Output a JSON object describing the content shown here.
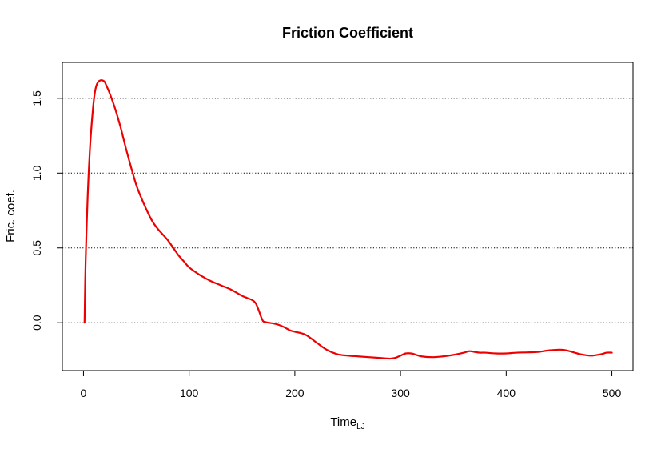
{
  "chart_data": {
    "type": "line",
    "title": "Friction Coefficient",
    "xlabel": "Time",
    "xlabel_subscript": "LJ",
    "ylabel": "Fric. coef.",
    "xlim": [
      -20,
      520
    ],
    "ylim": [
      -0.32,
      1.74
    ],
    "x_ticks": [
      0,
      100,
      200,
      300,
      400,
      500
    ],
    "x_tick_labels": [
      "0",
      "100",
      "200",
      "300",
      "400",
      "500"
    ],
    "y_ticks": [
      0.0,
      0.5,
      1.0,
      1.5
    ],
    "y_tick_labels": [
      "0.0",
      "0.5",
      "1.0",
      "1.5"
    ],
    "hgrid": [
      0.0,
      0.5,
      1.0,
      1.5
    ],
    "grid_style": "dotted horizontal",
    "series": [
      {
        "color": "#ee0000",
        "x": [
          1,
          2,
          4,
          6,
          8,
          10,
          12,
          14,
          16,
          18,
          20,
          22,
          25,
          30,
          35,
          40,
          45,
          50,
          55,
          60,
          65,
          70,
          75,
          80,
          85,
          90,
          95,
          100,
          110,
          120,
          130,
          140,
          150,
          155,
          160,
          163,
          166,
          168,
          170,
          172,
          175,
          180,
          185,
          190,
          195,
          200,
          210,
          220,
          230,
          240,
          250,
          260,
          270,
          280,
          290,
          295,
          300,
          305,
          310,
          315,
          320,
          330,
          340,
          350,
          360,
          365,
          370,
          375,
          380,
          390,
          400,
          410,
          420,
          430,
          440,
          450,
          455,
          460,
          470,
          480,
          490,
          495,
          500
        ],
        "y": [
          0.0,
          0.4,
          0.85,
          1.15,
          1.35,
          1.5,
          1.58,
          1.61,
          1.62,
          1.62,
          1.61,
          1.58,
          1.53,
          1.43,
          1.31,
          1.17,
          1.04,
          0.92,
          0.83,
          0.75,
          0.68,
          0.63,
          0.59,
          0.55,
          0.5,
          0.45,
          0.41,
          0.37,
          0.32,
          0.28,
          0.25,
          0.22,
          0.18,
          0.165,
          0.15,
          0.13,
          0.08,
          0.04,
          0.01,
          0.005,
          0.0,
          -0.005,
          -0.015,
          -0.03,
          -0.05,
          -0.06,
          -0.08,
          -0.13,
          -0.18,
          -0.21,
          -0.22,
          -0.225,
          -0.23,
          -0.235,
          -0.24,
          -0.235,
          -0.22,
          -0.205,
          -0.205,
          -0.215,
          -0.225,
          -0.23,
          -0.225,
          -0.215,
          -0.2,
          -0.19,
          -0.195,
          -0.2,
          -0.2,
          -0.205,
          -0.205,
          -0.2,
          -0.198,
          -0.195,
          -0.185,
          -0.18,
          -0.182,
          -0.19,
          -0.21,
          -0.22,
          -0.21,
          -0.2,
          -0.2
        ]
      }
    ]
  }
}
